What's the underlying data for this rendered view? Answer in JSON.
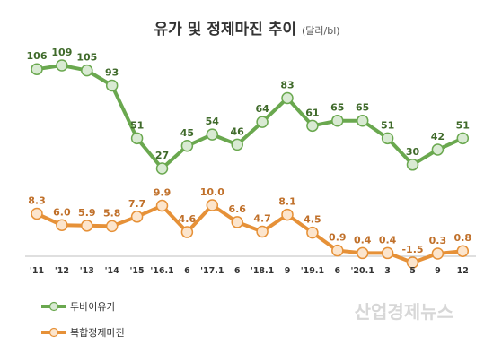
{
  "chart_data": {
    "type": "line",
    "title": "유가 및 정제마진 추이",
    "unit": "(달러/bl)",
    "categories": [
      "'11",
      "'12",
      "'13",
      "'14",
      "'15",
      "'16.1",
      "6",
      "'17.1",
      "6",
      "'18.1",
      "9",
      "'19.1",
      "6",
      "'20.1",
      "3",
      "5",
      "9",
      "12"
    ],
    "series": [
      {
        "name": "두바이유가",
        "color": "#6aa84f",
        "fill": "#d9ead3",
        "values": [
          106,
          109,
          105,
          93,
          51,
          27,
          45,
          54,
          46,
          64,
          83,
          61,
          65,
          65,
          51,
          30,
          42,
          51
        ],
        "labels": [
          "106",
          "109",
          "105",
          "93",
          "51",
          "27",
          "45",
          "54",
          "46",
          "64",
          "83",
          "61",
          "65",
          "65",
          "51",
          "30",
          "42",
          "51"
        ]
      },
      {
        "name": "복합정제마진",
        "color": "#e69138",
        "fill": "#fce5cd",
        "values": [
          8.3,
          6.0,
          5.9,
          5.8,
          7.7,
          9.9,
          4.6,
          10.0,
          6.6,
          4.7,
          8.1,
          4.5,
          0.9,
          0.4,
          0.4,
          -1.5,
          0.3,
          0.8
        ],
        "labels": [
          "8.3",
          "6.0",
          "5.9",
          "5.8",
          "7.7",
          "9.9",
          "4.6",
          "10.0",
          "6.6",
          "4.7",
          "8.1",
          "4.5",
          "0.9",
          "0.4",
          "0.4",
          "-1.5",
          "0.3",
          "0.8"
        ]
      }
    ],
    "legend": "bottom-left",
    "grid": false
  },
  "watermark": "산업경제뉴스"
}
